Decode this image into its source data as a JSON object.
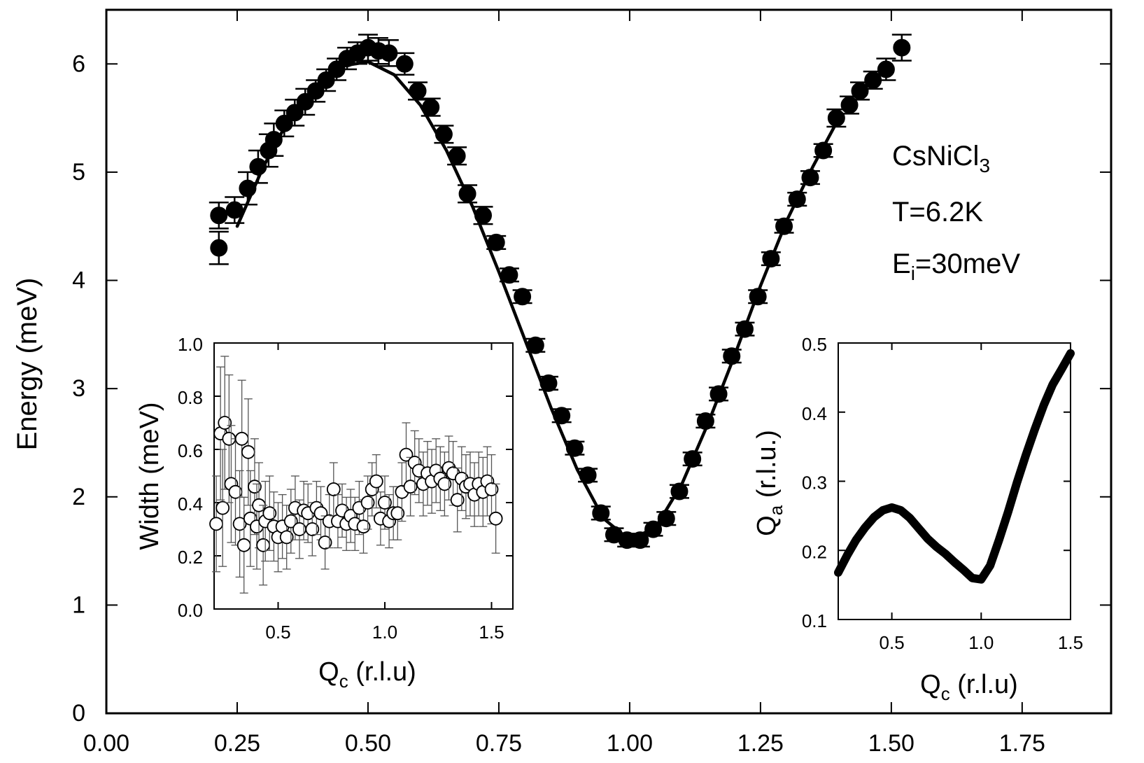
{
  "chart_data": [
    {
      "id": "main",
      "type": "scatter",
      "xlabel": "",
      "ylabel": "Energy (meV)",
      "xlim": [
        0.0,
        1.92
      ],
      "ylim": [
        0,
        6.5
      ],
      "xticks": [
        "0.00",
        "0.25",
        "0.50",
        "0.75",
        "1.00",
        "1.25",
        "1.50",
        "1.75"
      ],
      "yticks": [
        "0",
        "1",
        "2",
        "3",
        "4",
        "5",
        "6"
      ],
      "annotations": {
        "compound_base": "CsNiCl",
        "compound_sub": "3",
        "temperature": "T=6.2K",
        "energy_base": "E",
        "energy_sub": "i",
        "energy_rest": "=30meV"
      },
      "series": [
        {
          "marker": "filled-circle",
          "x": [
            0.215,
            0.215,
            0.245,
            0.27,
            0.29,
            0.31,
            0.32,
            0.34,
            0.36,
            0.38,
            0.4,
            0.42,
            0.44,
            0.46,
            0.48,
            0.5,
            0.52,
            0.54,
            0.57,
            0.595,
            0.62,
            0.645,
            0.67,
            0.69,
            0.72,
            0.745,
            0.77,
            0.795,
            0.82,
            0.845,
            0.87,
            0.895,
            0.92,
            0.945,
            0.97,
            0.995,
            1.02,
            1.045,
            1.07,
            1.095,
            1.12,
            1.145,
            1.17,
            1.195,
            1.22,
            1.245,
            1.27,
            1.295,
            1.32,
            1.345,
            1.37,
            1.395,
            1.42,
            1.44,
            1.465,
            1.49,
            1.52
          ],
          "y": [
            4.3,
            4.6,
            4.65,
            4.85,
            5.05,
            5.2,
            5.3,
            5.45,
            5.55,
            5.65,
            5.75,
            5.85,
            5.95,
            6.05,
            6.1,
            6.15,
            6.12,
            6.1,
            6.0,
            5.75,
            5.6,
            5.35,
            5.15,
            4.8,
            4.6,
            4.35,
            4.05,
            3.85,
            3.4,
            3.05,
            2.75,
            2.45,
            2.2,
            1.85,
            1.65,
            1.6,
            1.6,
            1.7,
            1.8,
            2.05,
            2.35,
            2.7,
            2.95,
            3.3,
            3.55,
            3.85,
            4.2,
            4.5,
            4.75,
            4.95,
            5.2,
            5.5,
            5.62,
            5.75,
            5.85,
            5.95,
            6.15
          ],
          "yerr": [
            0.15,
            0.12,
            0.12,
            0.15,
            0.15,
            0.15,
            0.15,
            0.12,
            0.12,
            0.12,
            0.1,
            0.1,
            0.1,
            0.1,
            0.1,
            0.12,
            0.12,
            0.12,
            0.1,
            0.08,
            0.08,
            0.08,
            0.08,
            0.08,
            0.08,
            0.06,
            0.06,
            0.06,
            0.06,
            0.06,
            0.06,
            0.06,
            0.06,
            0.06,
            0.06,
            0.06,
            0.06,
            0.06,
            0.06,
            0.06,
            0.06,
            0.06,
            0.06,
            0.06,
            0.06,
            0.06,
            0.06,
            0.06,
            0.06,
            0.06,
            0.06,
            0.08,
            0.08,
            0.08,
            0.08,
            0.1,
            0.12
          ]
        },
        {
          "marker": "line",
          "x": [
            0.25,
            0.3,
            0.35,
            0.4,
            0.45,
            0.5,
            0.55,
            0.6,
            0.65,
            0.7,
            0.75,
            0.8,
            0.85,
            0.9,
            0.95,
            1.0,
            1.05,
            1.1,
            1.15,
            1.2,
            1.25,
            1.3,
            1.35,
            1.4
          ],
          "y": [
            4.5,
            5.05,
            5.5,
            5.8,
            5.98,
            6.02,
            5.9,
            5.62,
            5.2,
            4.68,
            4.08,
            3.45,
            2.82,
            2.25,
            1.8,
            1.6,
            1.72,
            2.12,
            2.68,
            3.3,
            3.95,
            4.55,
            5.05,
            5.5
          ]
        }
      ]
    },
    {
      "id": "inset-width",
      "type": "scatter",
      "xlabel_base": "Q",
      "xlabel_sub": "c",
      "xlabel_rest": " (r.l.u)",
      "ylabel": "Width (meV)",
      "xlim": [
        0.2,
        1.6
      ],
      "ylim": [
        0.0,
        1.0
      ],
      "xticks": [
        "0.5",
        "1.0",
        "1.5"
      ],
      "yticks": [
        "0.0",
        "0.2",
        "0.4",
        "0.6",
        "0.8",
        "1.0"
      ],
      "series": [
        {
          "marker": "open-circle",
          "x": [
            0.21,
            0.23,
            0.24,
            0.25,
            0.27,
            0.28,
            0.3,
            0.32,
            0.33,
            0.34,
            0.36,
            0.37,
            0.39,
            0.4,
            0.41,
            0.43,
            0.44,
            0.46,
            0.48,
            0.5,
            0.52,
            0.54,
            0.56,
            0.58,
            0.6,
            0.62,
            0.64,
            0.66,
            0.68,
            0.7,
            0.72,
            0.74,
            0.76,
            0.78,
            0.8,
            0.82,
            0.84,
            0.86,
            0.88,
            0.9,
            0.92,
            0.94,
            0.96,
            0.98,
            1.0,
            1.02,
            1.04,
            1.06,
            1.08,
            1.1,
            1.12,
            1.14,
            1.16,
            1.18,
            1.2,
            1.22,
            1.24,
            1.26,
            1.28,
            1.3,
            1.32,
            1.34,
            1.36,
            1.38,
            1.4,
            1.42,
            1.44,
            1.46,
            1.48,
            1.5,
            1.52
          ],
          "y": [
            0.32,
            0.66,
            0.38,
            0.7,
            0.64,
            0.47,
            0.44,
            0.32,
            0.64,
            0.24,
            0.59,
            0.34,
            0.46,
            0.31,
            0.39,
            0.24,
            0.33,
            0.36,
            0.31,
            0.27,
            0.31,
            0.27,
            0.33,
            0.38,
            0.3,
            0.37,
            0.36,
            0.3,
            0.38,
            0.36,
            0.25,
            0.33,
            0.45,
            0.33,
            0.37,
            0.32,
            0.35,
            0.32,
            0.38,
            0.31,
            0.4,
            0.45,
            0.48,
            0.34,
            0.4,
            0.33,
            0.36,
            0.36,
            0.44,
            0.58,
            0.46,
            0.55,
            0.52,
            0.47,
            0.51,
            0.48,
            0.52,
            0.49,
            0.47,
            0.53,
            0.51,
            0.41,
            0.49,
            0.46,
            0.47,
            0.43,
            0.47,
            0.44,
            0.48,
            0.45,
            0.34
          ],
          "yerr": [
            0.18,
            0.25,
            0.22,
            0.25,
            0.24,
            0.22,
            0.2,
            0.2,
            0.22,
            0.18,
            0.2,
            0.18,
            0.18,
            0.16,
            0.16,
            0.15,
            0.15,
            0.14,
            0.13,
            0.13,
            0.12,
            0.12,
            0.12,
            0.12,
            0.11,
            0.11,
            0.11,
            0.1,
            0.1,
            0.1,
            0.1,
            0.1,
            0.1,
            0.1,
            0.1,
            0.1,
            0.1,
            0.1,
            0.1,
            0.1,
            0.1,
            0.1,
            0.1,
            0.1,
            0.1,
            0.1,
            0.1,
            0.1,
            0.11,
            0.12,
            0.11,
            0.12,
            0.12,
            0.12,
            0.12,
            0.12,
            0.12,
            0.12,
            0.12,
            0.12,
            0.12,
            0.12,
            0.12,
            0.12,
            0.12,
            0.12,
            0.12,
            0.13,
            0.13,
            0.13,
            0.13
          ]
        }
      ]
    },
    {
      "id": "inset-qa",
      "type": "line",
      "xlabel_base": "Q",
      "xlabel_sub": "c",
      "xlabel_rest": " (r.l.u)",
      "ylabel_base": "Q",
      "ylabel_sub": "a",
      "ylabel_rest": " (r.l.u.)",
      "xlim": [
        0.2,
        1.5
      ],
      "ylim": [
        0.1,
        0.5
      ],
      "xticks": [
        "0.5",
        "1.0",
        "1.5"
      ],
      "yticks": [
        "0.1",
        "0.2",
        "0.3",
        "0.4",
        "0.5"
      ],
      "series": [
        {
          "marker": "line",
          "x": [
            0.2,
            0.25,
            0.3,
            0.35,
            0.4,
            0.45,
            0.5,
            0.55,
            0.6,
            0.65,
            0.7,
            0.75,
            0.8,
            0.85,
            0.9,
            0.95,
            1.0,
            1.05,
            1.1,
            1.15,
            1.2,
            1.25,
            1.3,
            1.35,
            1.4,
            1.45,
            1.5
          ],
          "y": [
            0.168,
            0.193,
            0.215,
            0.233,
            0.248,
            0.258,
            0.262,
            0.258,
            0.247,
            0.232,
            0.217,
            0.205,
            0.195,
            0.183,
            0.172,
            0.16,
            0.158,
            0.178,
            0.215,
            0.255,
            0.298,
            0.338,
            0.375,
            0.41,
            0.44,
            0.462,
            0.485
          ]
        }
      ]
    }
  ]
}
